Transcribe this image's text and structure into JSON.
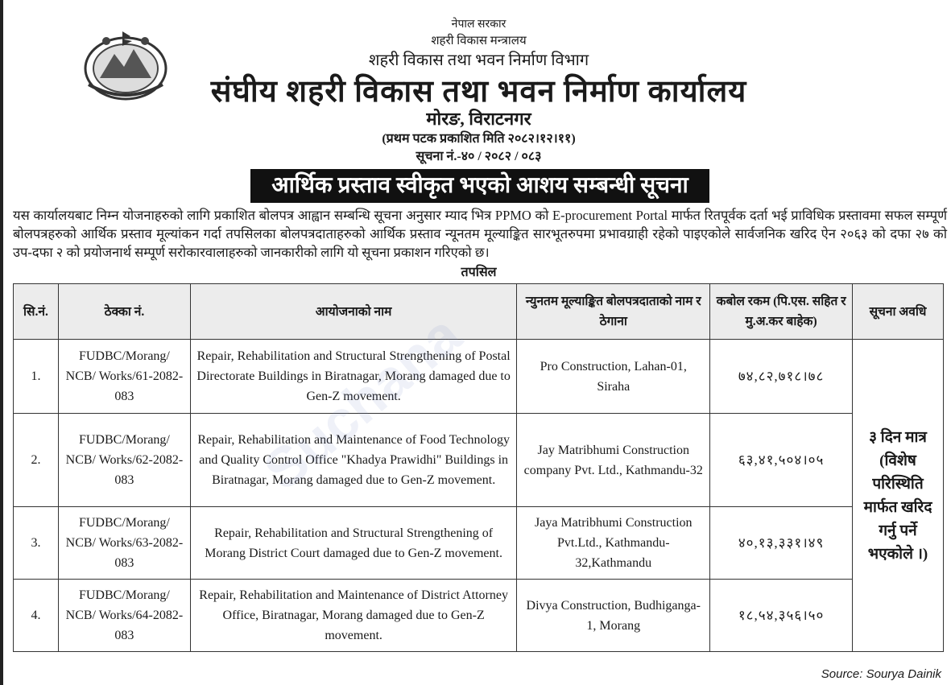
{
  "header": {
    "government": "नेपाल सरकार",
    "ministry": "शहरी विकास मन्त्रालय",
    "department": "शहरी विकास तथा भवन निर्माण विभाग",
    "office": "संघीय शहरी विकास तथा भवन निर्माण कार्यालय",
    "location": "मोरङ, विराटनगर",
    "first_published": "(प्रथम पटक प्रकाशित मिति २०८२।१२।११)",
    "notice_no": "सूचना नं.-४० / २०८२ / ०८३"
  },
  "banner": "आर्थिक प्रस्ताव स्वीकृत भएको आशय सम्बन्धी सूचना",
  "paragraph": "यस कार्यालयबाट निम्न योजनाहरुको लागि प्रकाशित बोलपत्र आह्वान सम्बन्धि सूचना अनुसार म्याद भित्र PPMO को E-procurement Portal मार्फत रितपूर्वक दर्ता भई प्राविधिक प्रस्तावमा सफल सम्पूर्ण बोलपत्रहरुको आर्थिक प्रस्ताव मूल्यांकन गर्दा तपसिलका बोलपत्रदाताहरुको आर्थिक प्रस्ताव न्यूनतम मूल्याङ्कित सारभूतरुपमा प्रभावग्राही रहेको पाइएकोले सार्वजनिक खरिद ऐन २०६३ को दफा २७ को उप-दफा २ को प्रयोजनार्थ सम्पूर्ण सरोकारवालाहरुको जानकारीको लागि यो सूचना प्रकाशन गरिएको छ।",
  "tapasil": "तपसिल",
  "table": {
    "headers": [
      "सि.नं.",
      "ठेक्का नं.",
      "आयोजनाको नाम",
      "न्युनतम मूल्याङ्कित बोलपत्रदाताको नाम र ठेगाना",
      "कबोल रकम (पि.एस. सहित र मु.अ.कर बाहेक)",
      "सूचना अवधि"
    ],
    "rows": [
      {
        "sn": "1.",
        "contract": "FUDBC/Morang/ NCB/ Works/61-2082-083",
        "project": "Repair, Rehabilitation and Structural Strengthening of Postal Directorate Buildings in Biratnagar, Morang damaged due to Gen-Z movement.",
        "bidder": "Pro Construction, Lahan-01, Siraha",
        "amount": "७४,८२,७१८।७८"
      },
      {
        "sn": "2.",
        "contract": "FUDBC/Morang/ NCB/ Works/62-2082-083",
        "project": "Repair, Rehabilitation and Maintenance of Food Technology and Quality  Control Office \"Khadya Prawidhi\" Buildings in Biratnagar, Morang damaged due to Gen-Z movement.",
        "bidder": "Jay Matribhumi Construction company Pvt. Ltd., Kathmandu-32",
        "amount": "६३,४१,५०४।०५"
      },
      {
        "sn": "3.",
        "contract": "FUDBC/Morang/ NCB/ Works/63-2082-083",
        "project": "Repair, Rehabilitation and Structural Strengthening of Morang District Court damaged due to Gen-Z movement.",
        "bidder": "Jaya Matribhumi Construction Pvt.Ltd., Kathmandu-32,Kathmandu",
        "amount": "४०,१३,३३१।४९"
      },
      {
        "sn": "4.",
        "contract": "FUDBC/Morang/ NCB/ Works/64-2082-083",
        "project": "Repair, Rehabilitation and Maintenance of District Attorney Office, Biratnagar, Morang damaged due to Gen-Z movement.",
        "bidder": "Divya Construction, Budhiganga-1, Morang",
        "amount": "१८,५४,३५६।५०"
      }
    ],
    "notice_period": "३ दिन मात्र (विशेष परिस्थिति मार्फत खरिद गर्नु पर्ने भएकोले ।)"
  },
  "watermark": "Suchana",
  "source": "Source: Sourya Dainik",
  "logo_icon": "nepal-government-emblem"
}
